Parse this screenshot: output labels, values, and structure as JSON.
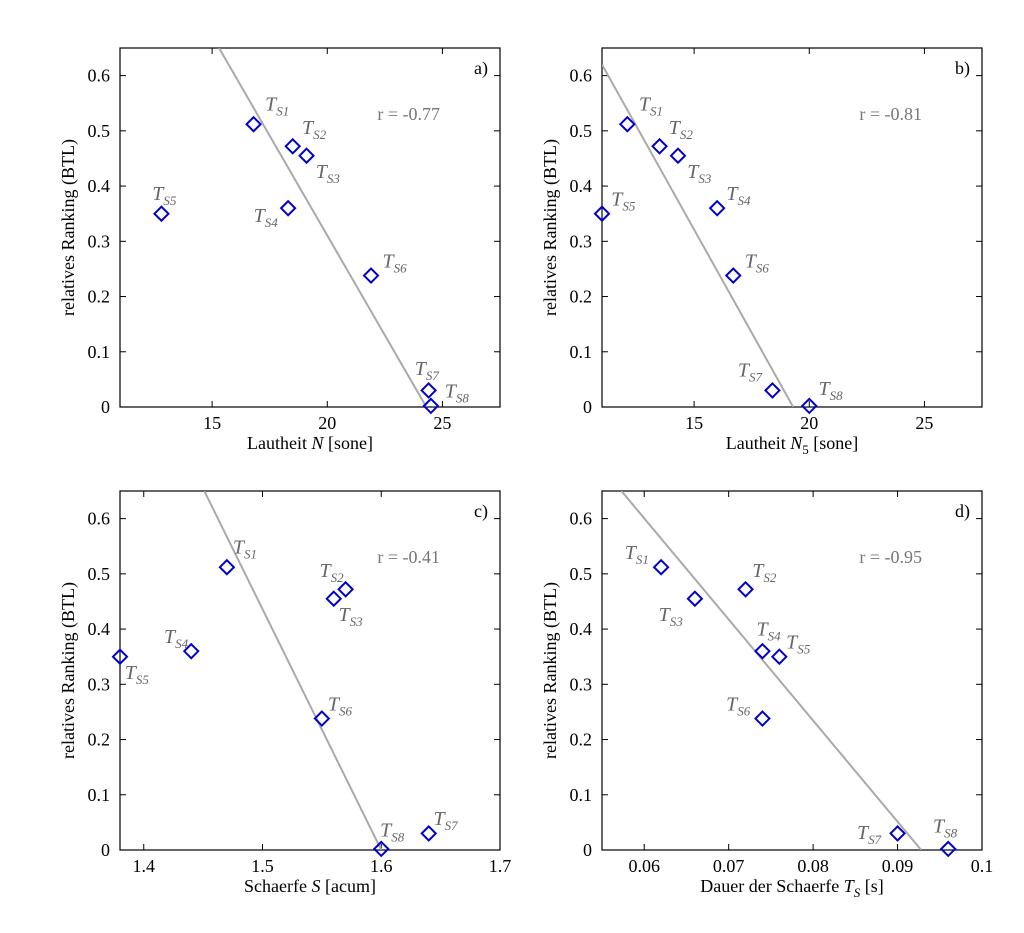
{
  "chart_data": [
    {
      "type": "scatter",
      "panel": "a)",
      "xlabel": "Lautheit N [sone]",
      "xlabel_parts": [
        "Lautheit ",
        "N",
        " [sone]"
      ],
      "ylabel": "relatives Ranking (BTL)",
      "xlim": [
        11,
        27.5
      ],
      "ylim": [
        0,
        0.65
      ],
      "xticks": [
        15,
        20,
        25
      ],
      "yticks": [
        0,
        0.1,
        0.2,
        0.3,
        0.4,
        0.5,
        0.6
      ],
      "correlation": "r = -0.77",
      "fit_line": {
        "x": [
          15.3,
          24.3
        ],
        "y": [
          0.65,
          0.0
        ]
      },
      "points": [
        {
          "label": "T",
          "sub": "S1",
          "x": 16.8,
          "y": 0.512,
          "lx": 0.5,
          "ly": 0.025
        },
        {
          "label": "T",
          "sub": "S2",
          "x": 18.5,
          "y": 0.472,
          "lx": 0.4,
          "ly": 0.022
        },
        {
          "label": "T",
          "sub": "S3",
          "x": 19.1,
          "y": 0.455,
          "lx": 0.4,
          "ly": -0.04
        },
        {
          "label": "T",
          "sub": "S4",
          "x": 18.3,
          "y": 0.36,
          "lx": -1.5,
          "ly": -0.025
        },
        {
          "label": "T",
          "sub": "S5",
          "x": 12.8,
          "y": 0.35,
          "lx": -0.4,
          "ly": 0.025
        },
        {
          "label": "T",
          "sub": "S6",
          "x": 21.9,
          "y": 0.238,
          "lx": 0.5,
          "ly": 0.015
        },
        {
          "label": "T",
          "sub": "S7",
          "x": 24.4,
          "y": 0.03,
          "lx": -0.6,
          "ly": 0.028
        },
        {
          "label": "T",
          "sub": "S8",
          "x": 24.5,
          "y": 0.002,
          "lx": 0.6,
          "ly": 0.015
        }
      ]
    },
    {
      "type": "scatter",
      "panel": "b)",
      "xlabel": "Lautheit N5 [sone]",
      "xlabel_parts": [
        "Lautheit ",
        "N",
        "5",
        " [sone]"
      ],
      "ylabel": "relatives Ranking (BTL)",
      "xlim": [
        11,
        27.5
      ],
      "ylim": [
        0,
        0.65
      ],
      "xticks": [
        15,
        20,
        25
      ],
      "yticks": [
        0,
        0.1,
        0.2,
        0.3,
        0.4,
        0.5,
        0.6
      ],
      "correlation": "r = -0.81",
      "fit_line": {
        "x": [
          11.0,
          19.3
        ],
        "y": [
          0.62,
          0.0
        ]
      },
      "points": [
        {
          "label": "T",
          "sub": "S1",
          "x": 12.1,
          "y": 0.512,
          "lx": 0.5,
          "ly": 0.025
        },
        {
          "label": "T",
          "sub": "S2",
          "x": 13.5,
          "y": 0.472,
          "lx": 0.4,
          "ly": 0.022
        },
        {
          "label": "T",
          "sub": "S3",
          "x": 14.3,
          "y": 0.455,
          "lx": 0.4,
          "ly": -0.04
        },
        {
          "label": "T",
          "sub": "S4",
          "x": 16.0,
          "y": 0.36,
          "lx": 0.4,
          "ly": 0.015
        },
        {
          "label": "T",
          "sub": "S5",
          "x": 11.0,
          "y": 0.35,
          "lx": 0.4,
          "ly": 0.015
        },
        {
          "label": "T",
          "sub": "S6",
          "x": 16.7,
          "y": 0.238,
          "lx": 0.5,
          "ly": 0.015
        },
        {
          "label": "T",
          "sub": "S7",
          "x": 18.4,
          "y": 0.03,
          "lx": -1.5,
          "ly": 0.025
        },
        {
          "label": "T",
          "sub": "S8",
          "x": 20.0,
          "y": 0.002,
          "lx": 0.4,
          "ly": 0.02
        }
      ]
    },
    {
      "type": "scatter",
      "panel": "c)",
      "xlabel": "Schaerfe S [acum]",
      "xlabel_parts": [
        "Schaerfe ",
        "S",
        " [acum]"
      ],
      "ylabel": "relatives Ranking (BTL)",
      "xlim": [
        1.38,
        1.7
      ],
      "ylim": [
        0,
        0.65
      ],
      "xticks": [
        1.4,
        1.5,
        1.6,
        1.7
      ],
      "yticks": [
        0,
        0.1,
        0.2,
        0.3,
        0.4,
        0.5,
        0.6
      ],
      "correlation": "r = -0.41",
      "fit_line": {
        "x": [
          1.451,
          1.6
        ],
        "y": [
          0.65,
          0.0
        ]
      },
      "points": [
        {
          "label": "T",
          "sub": "S1",
          "x": 1.47,
          "y": 0.512,
          "lx": 0.005,
          "ly": 0.025
        },
        {
          "label": "T",
          "sub": "S2",
          "x": 1.57,
          "y": 0.472,
          "lx": -0.022,
          "ly": 0.022
        },
        {
          "label": "T",
          "sub": "S3",
          "x": 1.56,
          "y": 0.455,
          "lx": 0.004,
          "ly": -0.04
        },
        {
          "label": "T",
          "sub": "S4",
          "x": 1.44,
          "y": 0.36,
          "lx": -0.023,
          "ly": 0.015
        },
        {
          "label": "T",
          "sub": "S5",
          "x": 1.38,
          "y": 0.35,
          "lx": 0.004,
          "ly": -0.04
        },
        {
          "label": "T",
          "sub": "S6",
          "x": 1.55,
          "y": 0.238,
          "lx": 0.005,
          "ly": 0.015
        },
        {
          "label": "T",
          "sub": "S7",
          "x": 1.64,
          "y": 0.03,
          "lx": 0.004,
          "ly": 0.015
        },
        {
          "label": "T",
          "sub": "S8",
          "x": 1.6,
          "y": 0.002,
          "lx": -0.001,
          "ly": 0.022
        }
      ]
    },
    {
      "type": "scatter",
      "panel": "d)",
      "xlabel": "Dauer der Schaerfe TS [s]",
      "xlabel_parts": [
        "Dauer der Schaerfe ",
        "T",
        "S",
        " [s]"
      ],
      "ylabel": "relatives Ranking (BTL)",
      "xlim": [
        0.055,
        0.1
      ],
      "ylim": [
        0,
        0.65
      ],
      "xticks": [
        0.06,
        0.07,
        0.08,
        0.09,
        0.1
      ],
      "yticks": [
        0,
        0.1,
        0.2,
        0.3,
        0.4,
        0.5,
        0.6
      ],
      "correlation": "r = -0.95",
      "fit_line": {
        "x": [
          0.0573,
          0.0928
        ],
        "y": [
          0.65,
          0.0
        ]
      },
      "points": [
        {
          "label": "T",
          "sub": "S1",
          "x": 0.062,
          "y": 0.512,
          "lx": -0.0043,
          "ly": 0.015
        },
        {
          "label": "T",
          "sub": "S2",
          "x": 0.072,
          "y": 0.472,
          "lx": 0.0008,
          "ly": 0.022
        },
        {
          "label": "T",
          "sub": "S3",
          "x": 0.066,
          "y": 0.455,
          "lx": -0.0043,
          "ly": -0.04
        },
        {
          "label": "T",
          "sub": "S4",
          "x": 0.074,
          "y": 0.36,
          "lx": -0.0007,
          "ly": 0.028
        },
        {
          "label": "T",
          "sub": "S5",
          "x": 0.076,
          "y": 0.35,
          "lx": 0.0008,
          "ly": 0.015
        },
        {
          "label": "T",
          "sub": "S6",
          "x": 0.074,
          "y": 0.238,
          "lx": -0.0043,
          "ly": 0.015
        },
        {
          "label": "T",
          "sub": "S7",
          "x": 0.09,
          "y": 0.03,
          "lx": -0.0048,
          "ly": -0.01
        },
        {
          "label": "T",
          "sub": "S8",
          "x": 0.096,
          "y": 0.002,
          "lx": -0.0018,
          "ly": 0.03
        }
      ]
    }
  ]
}
